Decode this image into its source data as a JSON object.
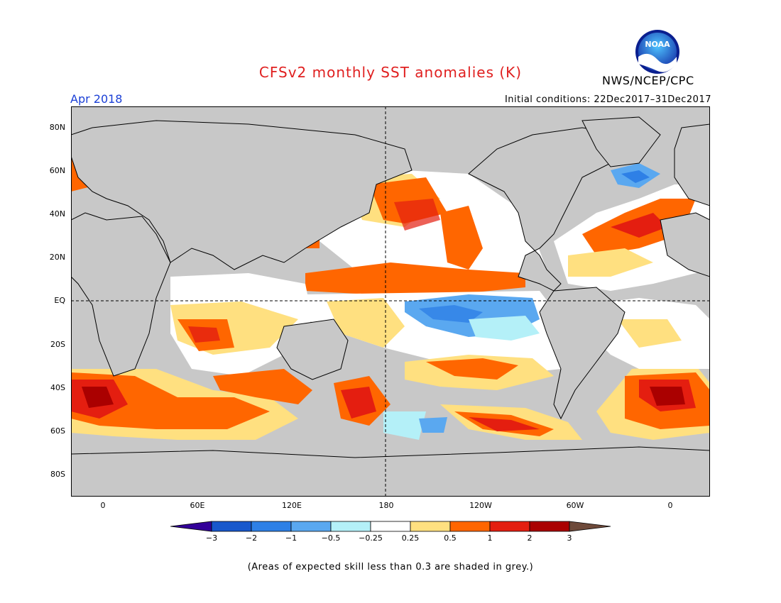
{
  "header": {
    "title": "CFSv2 monthly SST anomalies (K)",
    "agency": "NWS/NCEP/CPC",
    "logo_text": "NOAA",
    "month": "Apr 2018",
    "initial_conditions": "Initial conditions: 22Dec2017–31Dec2017"
  },
  "map": {
    "latitude_labels": [
      "80N",
      "60N",
      "40N",
      "20N",
      "EQ",
      "20S",
      "40S",
      "60S",
      "80S"
    ],
    "longitude_labels": [
      "0",
      "60E",
      "120E",
      "180",
      "120W",
      "60W",
      "0"
    ],
    "land_color": "#c8c8c8",
    "skill_mask_color": "#c8c8c8"
  },
  "colorbar": {
    "labels": [
      "−3",
      "−2",
      "−1",
      "−0.5",
      "−0.25",
      "0.25",
      "0.5",
      "1",
      "2",
      "3"
    ],
    "colors": [
      "#330099",
      "#1858cc",
      "#2e80e6",
      "#5aa8f0",
      "#b4f0f8",
      "#ffffff",
      "#ffe080",
      "#ff6600",
      "#e41e10",
      "#aa0000",
      "#6e4a3a"
    ]
  },
  "footnote": "(Areas of expected skill less than 0.3 are shaded in grey.)"
}
